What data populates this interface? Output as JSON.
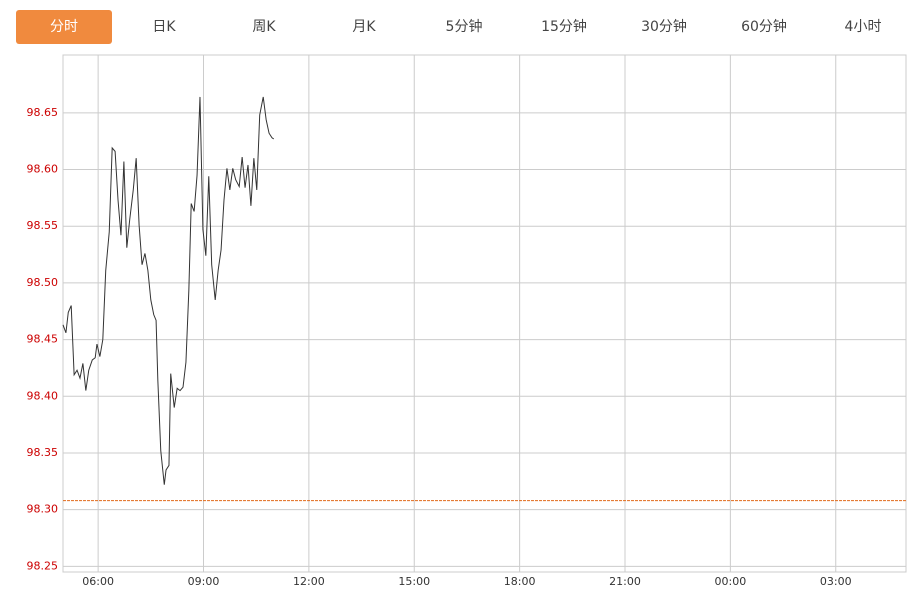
{
  "tabs": {
    "labels": [
      "分时",
      "日K",
      "周K",
      "月K",
      "5分钟",
      "15分钟",
      "30分钟",
      "60分钟",
      "4小时"
    ],
    "active": 0,
    "active_color": "#f08a3e"
  },
  "chart_data": {
    "type": "line",
    "x": [
      0,
      5,
      9,
      14,
      19,
      24,
      29,
      34,
      39,
      44,
      50,
      55,
      58,
      63,
      68,
      73,
      79,
      84,
      89,
      94,
      99,
      104,
      109,
      114,
      120,
      125,
      130,
      135,
      140,
      145,
      150,
      155,
      159,
      162,
      167,
      173,
      176,
      181,
      184,
      190,
      195,
      200,
      205,
      210,
      215,
      219,
      224,
      229,
      234,
      239,
      244,
      249,
      254,
      260,
      265,
      270,
      275,
      280,
      285,
      290,
      295,
      301,
      306,
      311,
      316,
      321,
      326,
      331,
      336,
      342,
      347,
      352,
      357,
      360
    ],
    "series": [
      {
        "color": "#333333",
        "values": [
          98.463,
          98.456,
          98.474,
          98.48,
          98.419,
          98.423,
          98.416,
          98.429,
          98.405,
          98.423,
          98.432,
          98.434,
          98.446,
          98.435,
          98.45,
          98.511,
          98.545,
          98.619,
          98.616,
          98.573,
          98.542,
          98.607,
          98.531,
          98.556,
          98.582,
          98.61,
          98.551,
          98.516,
          98.526,
          98.511,
          98.485,
          98.472,
          98.467,
          98.414,
          98.352,
          98.322,
          98.335,
          98.339,
          98.42,
          98.39,
          98.407,
          98.405,
          98.408,
          98.43,
          98.494,
          98.57,
          98.563,
          98.595,
          98.664,
          98.547,
          98.524,
          98.594,
          98.516,
          98.485,
          98.511,
          98.529,
          98.573,
          98.601,
          98.582,
          98.601,
          98.591,
          98.585,
          98.611,
          98.584,
          98.604,
          98.568,
          98.61,
          98.582,
          98.648,
          98.664,
          98.644,
          98.632,
          98.628,
          98.627
        ]
      }
    ],
    "reference_line": {
      "value": 98.308,
      "color": "#e06a1b"
    },
    "xlim": [
      0,
      1440
    ],
    "xticks": [
      {
        "value": 60,
        "label": "06:00"
      },
      {
        "value": 240,
        "label": "09:00"
      },
      {
        "value": 420,
        "label": "12:00"
      },
      {
        "value": 600,
        "label": "15:00"
      },
      {
        "value": 780,
        "label": "18:00"
      },
      {
        "value": 960,
        "label": "21:00"
      },
      {
        "value": 1140,
        "label": "00:00"
      },
      {
        "value": 1320,
        "label": "03:00"
      }
    ],
    "ylim": [
      98.245,
      98.701
    ],
    "yticks": [
      98.25,
      {
        "value": 98.3,
        "label": "98.30"
      },
      98.35,
      {
        "value": 98.4,
        "label": "98.40"
      },
      98.45,
      {
        "value": 98.5,
        "label": "98.50"
      },
      98.55,
      {
        "value": 98.6,
        "label": "98.60"
      },
      98.65
    ],
    "ytick_color": "#cc0000",
    "grid": true
  }
}
